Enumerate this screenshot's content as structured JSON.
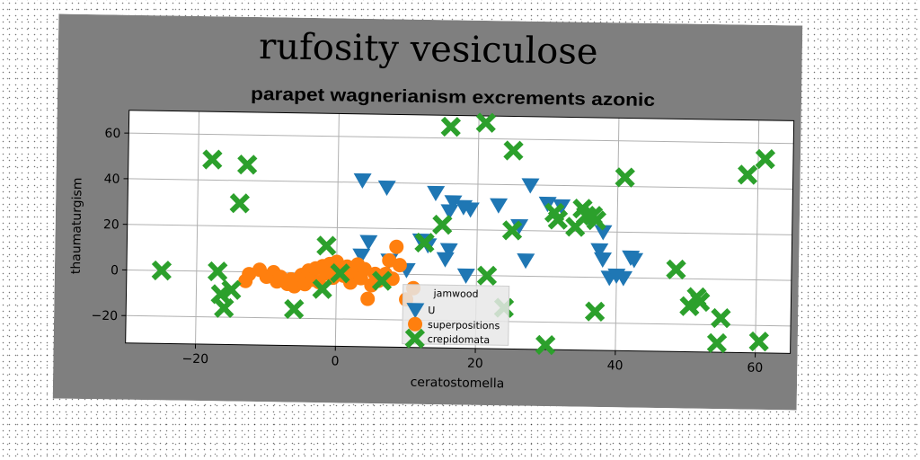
{
  "chart_data": {
    "type": "scatter",
    "title": "rufosity vesiculose",
    "subtitle": "parapet wagnerianism excrements azonic",
    "xlabel": "ceratostomella",
    "ylabel": "thaumaturgism",
    "xlim": [
      -30,
      65
    ],
    "ylim": [
      -32,
      70
    ],
    "xticks": [
      -20,
      0,
      20,
      40,
      60
    ],
    "yticks": [
      -20,
      0,
      20,
      40,
      60
    ],
    "grid": true,
    "legend": {
      "title": "jamwood",
      "placement": "lower-center"
    },
    "colors": {
      "figure_bg": "#7f7f7f",
      "plot_bg": "#ffffff"
    },
    "series": [
      {
        "name": "U",
        "marker": "triangle-down",
        "color": "#1f77b4",
        "points": [
          [
            3.5,
            41
          ],
          [
            7,
            38
          ],
          [
            14,
            36
          ],
          [
            16.5,
            32
          ],
          [
            16,
            28
          ],
          [
            18,
            30
          ],
          [
            19,
            29
          ],
          [
            23,
            31
          ],
          [
            27.5,
            40
          ],
          [
            30,
            32
          ],
          [
            32,
            31
          ],
          [
            26,
            22
          ],
          [
            36,
            26
          ],
          [
            38,
            20
          ],
          [
            37.5,
            12
          ],
          [
            38,
            8
          ],
          [
            39,
            0
          ],
          [
            40,
            1
          ],
          [
            41,
            0
          ],
          [
            42,
            9
          ],
          [
            42.5,
            8
          ],
          [
            12,
            15
          ],
          [
            13,
            13
          ],
          [
            16,
            11
          ],
          [
            4.5,
            14
          ],
          [
            3.5,
            8
          ],
          [
            7.5,
            6
          ],
          [
            10,
            2
          ],
          [
            15.5,
            7
          ],
          [
            18.5,
            0
          ],
          [
            27,
            7
          ]
        ]
      },
      {
        "name": "superpositions",
        "marker": "circle",
        "color": "#ff7f0e",
        "points": [
          [
            -13,
            -4
          ],
          [
            -12.5,
            -1
          ],
          [
            -11,
            1
          ],
          [
            -10,
            -2
          ],
          [
            -9,
            0
          ],
          [
            -8.5,
            -4
          ],
          [
            -8,
            -2
          ],
          [
            -7,
            -5
          ],
          [
            -6.5,
            -3
          ],
          [
            -6,
            -6
          ],
          [
            -5,
            -1
          ],
          [
            -4.5,
            -5
          ],
          [
            -4,
            1
          ],
          [
            -3.5,
            -3
          ],
          [
            -3,
            2
          ],
          [
            -2.5,
            -4
          ],
          [
            -2,
            3
          ],
          [
            -1.5,
            0
          ],
          [
            -1,
            4
          ],
          [
            -0.5,
            -2
          ],
          [
            0,
            5
          ],
          [
            0.5,
            1
          ],
          [
            1,
            -1
          ],
          [
            1.5,
            3
          ],
          [
            2,
            -4
          ],
          [
            2.5,
            1
          ],
          [
            3,
            4
          ],
          [
            3.5,
            -2
          ],
          [
            4,
            2
          ],
          [
            5,
            -5
          ],
          [
            5.5,
            0
          ],
          [
            6,
            -3
          ],
          [
            7,
            0
          ],
          [
            7.5,
            6
          ],
          [
            8,
            -2
          ],
          [
            8.5,
            12
          ],
          [
            9,
            4
          ],
          [
            10,
            -11
          ],
          [
            11,
            -6
          ],
          [
            4.5,
            -11
          ]
        ]
      },
      {
        "name": "crepidomata",
        "marker": "x",
        "color": "#2ca02c",
        "points": [
          [
            -25,
            0
          ],
          [
            -18,
            49
          ],
          [
            -17,
            0
          ],
          [
            -16.5,
            -10
          ],
          [
            -16,
            -16
          ],
          [
            -15,
            -8
          ],
          [
            -14,
            30
          ],
          [
            -13,
            47
          ],
          [
            -6,
            -16
          ],
          [
            -2,
            -7
          ],
          [
            -1.5,
            12
          ],
          [
            0.5,
            0
          ],
          [
            6.5,
            -3
          ],
          [
            12.5,
            14
          ],
          [
            15,
            22
          ],
          [
            16,
            65
          ],
          [
            21,
            67
          ],
          [
            21.5,
            0
          ],
          [
            24,
            -14
          ],
          [
            25,
            55
          ],
          [
            25,
            20
          ],
          [
            31,
            28
          ],
          [
            31.5,
            25
          ],
          [
            30,
            -30
          ],
          [
            34,
            22
          ],
          [
            35,
            30
          ],
          [
            35.5,
            27
          ],
          [
            36.5,
            27
          ],
          [
            37,
            25
          ],
          [
            37,
            -15
          ],
          [
            41,
            44
          ],
          [
            48.5,
            4
          ],
          [
            50.5,
            -12
          ],
          [
            51.5,
            -8
          ],
          [
            52,
            -10
          ],
          [
            55,
            -17
          ],
          [
            54.5,
            -28
          ],
          [
            58.5,
            46
          ],
          [
            60.5,
            -27
          ],
          [
            61,
            53
          ]
        ]
      }
    ]
  }
}
